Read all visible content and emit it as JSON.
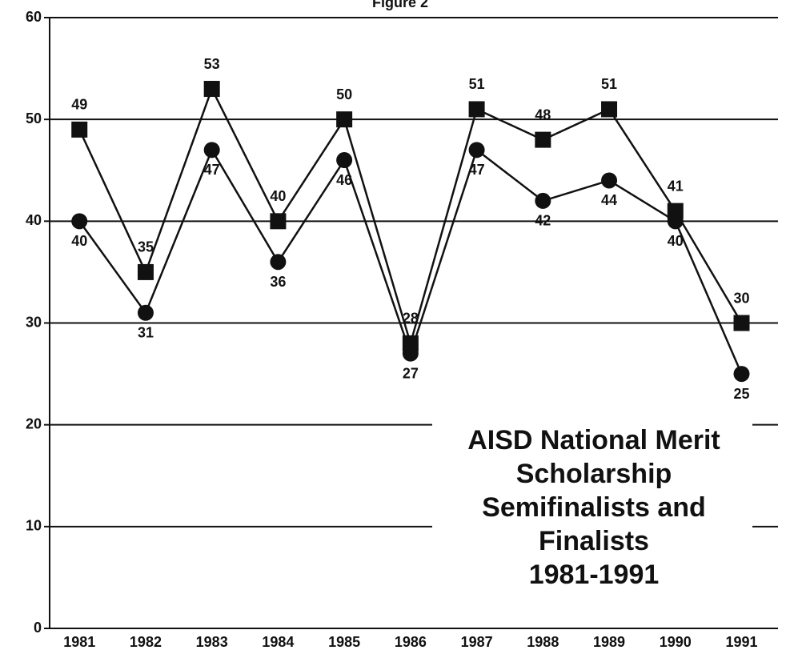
{
  "chart_data": {
    "type": "line",
    "title": "Figure 2",
    "annotation": [
      "AISD National Merit",
      "Scholarship",
      "Semifinalists and",
      "Finalists",
      "1981-1991"
    ],
    "categories": [
      "1981",
      "1982",
      "1983",
      "1984",
      "1985",
      "1986",
      "1987",
      "1988",
      "1989",
      "1990",
      "1991"
    ],
    "series": [
      {
        "marker": "square",
        "color": "#111111",
        "values": [
          49,
          35,
          53,
          40,
          50,
          28,
          51,
          48,
          51,
          41,
          30
        ]
      },
      {
        "marker": "circle",
        "color": "#111111",
        "values": [
          40,
          31,
          47,
          36,
          46,
          27,
          47,
          42,
          44,
          40,
          25
        ]
      }
    ],
    "ylim": [
      0,
      60
    ],
    "yticks": [
      0,
      10,
      20,
      30,
      40,
      50,
      60
    ],
    "grid": true
  }
}
